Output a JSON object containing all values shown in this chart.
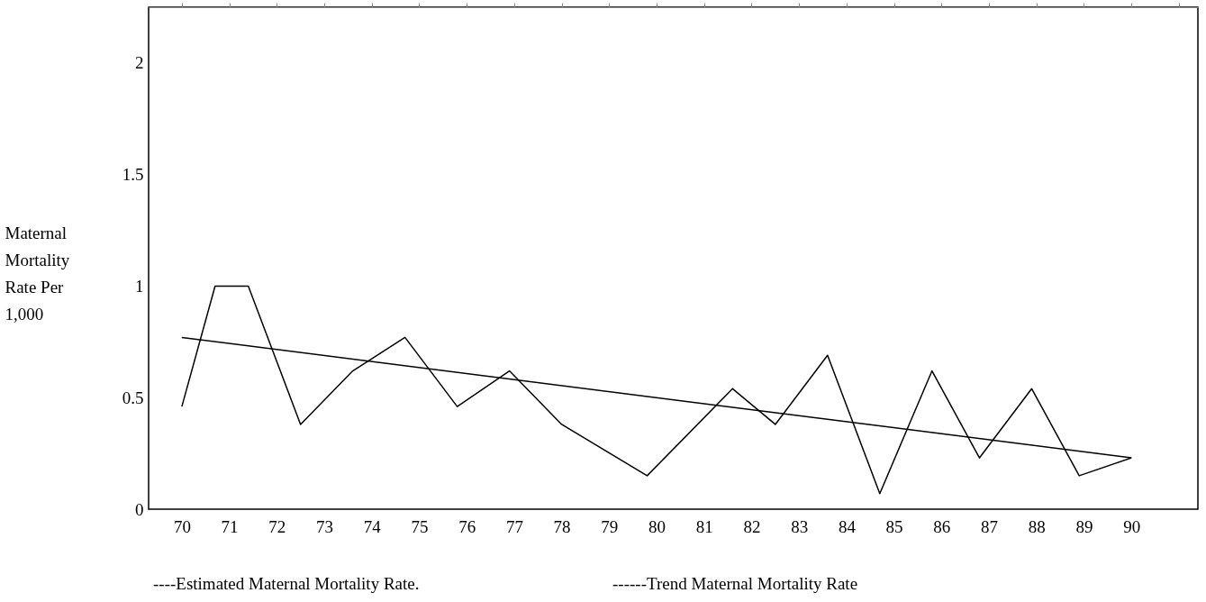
{
  "chart_data": {
    "type": "line",
    "ylabel": "Maternal Mortality Rate Per 1,000",
    "xlim": [
      69.3,
      91.4
    ],
    "xticks": [
      70,
      71,
      72,
      73,
      74,
      75,
      76,
      77,
      78,
      79,
      80,
      81,
      82,
      83,
      84,
      85,
      86,
      87,
      88,
      89,
      90
    ],
    "ylim": [
      0,
      2.25
    ],
    "yticks": [
      0,
      0.5,
      1,
      1.5,
      2
    ],
    "grid": false,
    "series": [
      {
        "color": "#000000",
        "x": [
          70.0,
          70.7,
          71.4,
          72.5,
          73.6,
          74.7,
          75.8,
          76.9,
          78.0,
          79.8,
          81.6,
          82.5,
          83.6,
          84.7,
          85.8,
          86.8,
          87.9,
          88.9,
          90.0
        ],
        "values": [
          0.46,
          1.0,
          1.0,
          0.38,
          0.62,
          0.77,
          0.46,
          0.62,
          0.38,
          0.15,
          0.54,
          0.38,
          0.69,
          0.07,
          0.62,
          0.23,
          0.54,
          0.15,
          0.23
        ]
      },
      {
        "color": "#000000",
        "x": [
          70.0,
          90.0
        ],
        "values": [
          0.77,
          0.23
        ]
      }
    ],
    "annotations": [
      "----Estimated Maternal Mortality Rate.",
      "------Trend Maternal Mortality Rate"
    ]
  }
}
